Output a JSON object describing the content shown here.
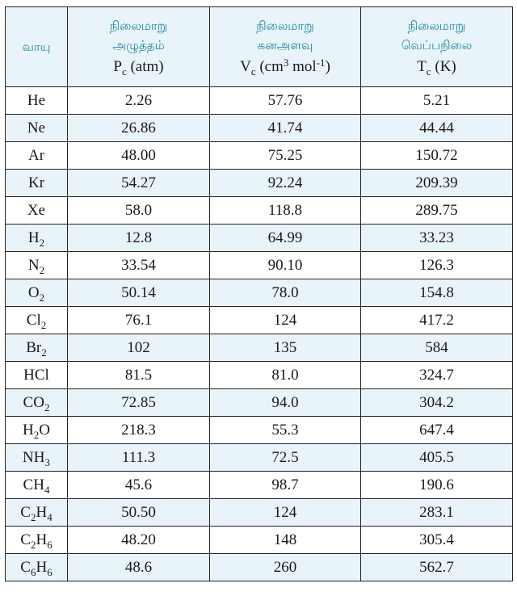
{
  "table": {
    "headers": {
      "gas": "வாயு",
      "pressure": {
        "title_line1": "நிலைமாறு",
        "title_line2": "அழுத்தம்",
        "symbol": "P",
        "subscript": "c",
        "unit": "(atm)"
      },
      "volume": {
        "title_line1": "நிலைமாறு",
        "title_line2": "கனஅளவு",
        "symbol": "V",
        "subscript": "c",
        "unit_open": "(cm",
        "unit_sup1": "3",
        "unit_mid": " mol",
        "unit_sup2": "-1",
        "unit_close": ")"
      },
      "temperature": {
        "title_line1": "நிலைமாறு",
        "title_line2": "வெப்பநிலை",
        "symbol": "T",
        "subscript": "c",
        "unit": "(K)"
      }
    },
    "rows": [
      {
        "gas": [
          {
            "t": "He"
          }
        ],
        "pc": "2.26",
        "vc": "57.76",
        "tc": "5.21"
      },
      {
        "gas": [
          {
            "t": "Ne"
          }
        ],
        "pc": "26.86",
        "vc": "41.74",
        "tc": "44.44"
      },
      {
        "gas": [
          {
            "t": "Ar"
          }
        ],
        "pc": "48.00",
        "vc": "75.25",
        "tc": "150.72"
      },
      {
        "gas": [
          {
            "t": "Kr"
          }
        ],
        "pc": "54.27",
        "vc": "92.24",
        "tc": "209.39"
      },
      {
        "gas": [
          {
            "t": "Xe"
          }
        ],
        "pc": "58.0",
        "vc": "118.8",
        "tc": "289.75"
      },
      {
        "gas": [
          {
            "t": "H"
          },
          {
            "sub": "2"
          }
        ],
        "pc": "12.8",
        "vc": "64.99",
        "tc": "33.23"
      },
      {
        "gas": [
          {
            "t": "N"
          },
          {
            "sub": "2"
          }
        ],
        "pc": "33.54",
        "vc": "90.10",
        "tc": "126.3"
      },
      {
        "gas": [
          {
            "t": "O"
          },
          {
            "sub": "2"
          }
        ],
        "pc": "50.14",
        "vc": "78.0",
        "tc": "154.8"
      },
      {
        "gas": [
          {
            "t": "Cl"
          },
          {
            "sub": "2"
          }
        ],
        "pc": "76.1",
        "vc": "124",
        "tc": "417.2"
      },
      {
        "gas": [
          {
            "t": "Br"
          },
          {
            "sub": "2"
          }
        ],
        "pc": "102",
        "vc": "135",
        "tc": "584"
      },
      {
        "gas": [
          {
            "t": "HCl"
          }
        ],
        "pc": "81.5",
        "vc": "81.0",
        "tc": "324.7"
      },
      {
        "gas": [
          {
            "t": "CO"
          },
          {
            "sub": "2"
          }
        ],
        "pc": "72.85",
        "vc": "94.0",
        "tc": "304.2"
      },
      {
        "gas": [
          {
            "t": "H"
          },
          {
            "sub": "2"
          },
          {
            "t": "O"
          }
        ],
        "pc": "218.3",
        "vc": "55.3",
        "tc": "647.4"
      },
      {
        "gas": [
          {
            "t": "NH"
          },
          {
            "sub": "3"
          }
        ],
        "pc": "111.3",
        "vc": "72.5",
        "tc": "405.5"
      },
      {
        "gas": [
          {
            "t": "CH"
          },
          {
            "sub": "4"
          }
        ],
        "pc": "45.6",
        "vc": "98.7",
        "tc": "190.6"
      },
      {
        "gas": [
          {
            "t": "C"
          },
          {
            "sub": "2"
          },
          {
            "t": "H"
          },
          {
            "sub": "4"
          }
        ],
        "pc": "50.50",
        "vc": "124",
        "tc": "283.1"
      },
      {
        "gas": [
          {
            "t": "C"
          },
          {
            "sub": "2"
          },
          {
            "t": "H"
          },
          {
            "sub": "6"
          }
        ],
        "pc": "48.20",
        "vc": "148",
        "tc": "305.4"
      },
      {
        "gas": [
          {
            "t": "C"
          },
          {
            "sub": "6"
          },
          {
            "t": "H"
          },
          {
            "sub": "6"
          }
        ],
        "pc": "48.6",
        "vc": "260",
        "tc": "562.7"
      }
    ]
  },
  "colors": {
    "header_text": "#1f8a9b",
    "header_bg": "#e9f3fa",
    "stripe_bg": "#e9f3fa",
    "border": "#222222"
  }
}
